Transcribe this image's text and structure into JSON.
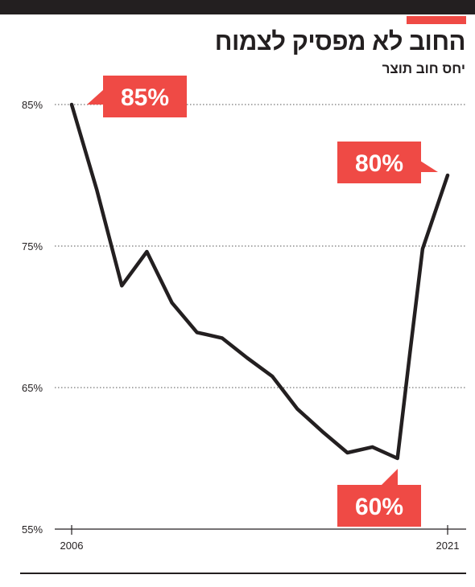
{
  "title": "החוב לא מפסיק לצמוח",
  "subtitle": "יחס חוב תוצר",
  "colors": {
    "accent": "#ef4a45",
    "line": "#231f20",
    "grid": "#555555"
  },
  "chart_data": {
    "type": "line",
    "title": "החוב לא מפסיק לצמוח",
    "subtitle": "יחס חוב תוצר",
    "xlabel": "",
    "ylabel": "",
    "y_unit": "%",
    "xlim": [
      2006,
      2021
    ],
    "ylim": [
      55,
      85
    ],
    "yticks": [
      "55%",
      "65%",
      "75%",
      "85%"
    ],
    "ytick_values": [
      55,
      65,
      75,
      85
    ],
    "xticks": [
      "2006",
      "2021"
    ],
    "xtick_values": [
      2006,
      2021
    ],
    "grid": true,
    "x": [
      2006,
      2007,
      2008,
      2009,
      2010,
      2011,
      2012,
      2013,
      2014,
      2015,
      2016,
      2017,
      2018,
      2019,
      2019.5,
      2020,
      2021
    ],
    "values": [
      85,
      79,
      72.2,
      74.6,
      71,
      68.9,
      68.5,
      67.1,
      65.8,
      63.5,
      61.9,
      60.4,
      60.8,
      60.0,
      67.5,
      74.8,
      80
    ],
    "annotations": [
      {
        "label": "85%",
        "x": 2006,
        "y": 85
      },
      {
        "label": "80%",
        "x": 2021,
        "y": 80
      },
      {
        "label": "60%",
        "x": 2019,
        "y": 60
      }
    ]
  }
}
